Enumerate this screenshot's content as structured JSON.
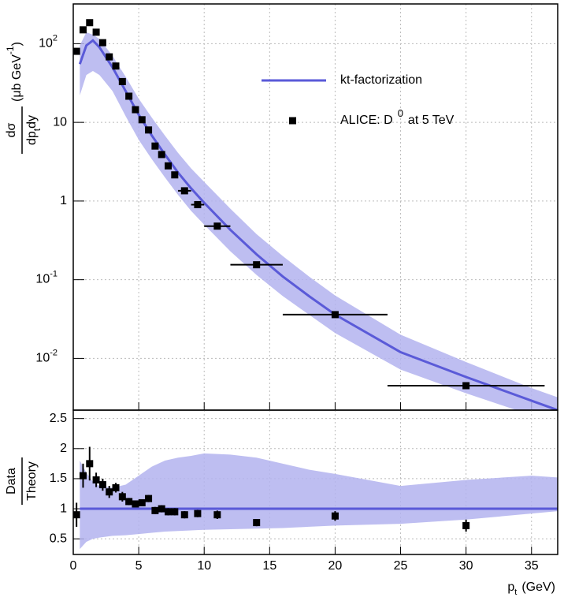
{
  "chart_data": [
    {
      "type": "line",
      "log_y": true,
      "grid": true,
      "legend": "top-right",
      "y_label": {
        "numerator": "dσ",
        "denominator": "dp",
        "denominator_sub": "t",
        "denominator_tail": "dy",
        "unit": "(μb GeV",
        "unit_sup": "-1",
        "unit_close": ")"
      },
      "xlim": [
        0,
        37
      ],
      "xticks": [
        0,
        5,
        10,
        15,
        20,
        25,
        30,
        35
      ],
      "ylim": [
        0.0022,
        320
      ],
      "yticks": [
        {
          "value": 0.01,
          "label": "10",
          "exponent": "-2"
        },
        {
          "value": 0.1,
          "label": "10",
          "exponent": "-1"
        },
        1,
        10,
        {
          "value": 100,
          "label": "10",
          "exponent": "2"
        }
      ],
      "series": [
        {
          "name": "kt-factorization",
          "style": "line",
          "color": "#5a5ad8",
          "band_color": "#b3b3ee",
          "x": [
            0.5,
            1,
            1.5,
            2,
            3,
            4,
            5,
            6,
            7,
            8,
            9,
            10,
            12,
            14,
            16,
            18,
            20,
            25,
            30,
            35,
            37
          ],
          "values": [
            55,
            95,
            110,
            90,
            50,
            25,
            12.5,
            6.8,
            3.9,
            2.3,
            1.45,
            0.95,
            0.43,
            0.21,
            0.11,
            0.062,
            0.036,
            0.012,
            0.0058,
            0.0029,
            0.0022
          ],
          "band_low": [
            22,
            40,
            45,
            40,
            25,
            12,
            6,
            3.4,
            2,
            1.2,
            0.75,
            0.5,
            0.23,
            0.115,
            0.062,
            0.036,
            0.021,
            0.0072,
            0.0036,
            0.0019,
            0.00145
          ],
          "band_high": [
            95,
            140,
            130,
            115,
            70,
            38,
            20,
            11.5,
            6.8,
            4.1,
            2.6,
            1.75,
            0.8,
            0.38,
            0.2,
            0.11,
            0.063,
            0.02,
            0.009,
            0.0042,
            0.0032
          ]
        },
        {
          "name": "ALICE: D",
          "name_sup": "0",
          "name_tail": "at 5 TeV",
          "style": "markers",
          "color": "#000000",
          "x": [
            0.25,
            0.75,
            1.25,
            1.75,
            2.25,
            2.75,
            3.25,
            3.75,
            4.25,
            4.75,
            5.25,
            5.75,
            6.25,
            6.75,
            7.25,
            7.75,
            8.5,
            9.5,
            11,
            14,
            20,
            30
          ],
          "values": [
            80,
            150,
            185,
            140,
            103,
            68,
            52,
            33,
            21.5,
            14.5,
            10.8,
            8,
            5,
            3.9,
            2.8,
            2.15,
            1.35,
            0.9,
            0.48,
            0.155,
            0.036,
            0.0045
          ],
          "xerr": [
            0.25,
            0.25,
            0.25,
            0.25,
            0.25,
            0.25,
            0.25,
            0.25,
            0.25,
            0.25,
            0.25,
            0.25,
            0.25,
            0.25,
            0.25,
            0.25,
            0.5,
            0.5,
            1,
            2,
            4,
            6
          ]
        }
      ]
    },
    {
      "type": "line",
      "log_y": false,
      "grid": true,
      "y_label": {
        "numerator": "Data",
        "denominator": "Theory"
      },
      "x_label": {
        "text": "p",
        "sub": "t",
        "tail": "(GeV)"
      },
      "xlim": [
        0,
        37
      ],
      "xticks": [
        0,
        5,
        10,
        15,
        20,
        25,
        30,
        35
      ],
      "ylim": [
        0.24,
        2.64
      ],
      "yticks": [
        0.5,
        1,
        1.5,
        2,
        2.5
      ],
      "series": [
        {
          "style": "line",
          "color": "#5a5ad8",
          "band_color": "#b3b3ee",
          "x": [
            0.5,
            1,
            1.5,
            2,
            3,
            4,
            5,
            6,
            7,
            8,
            9,
            10,
            12,
            14,
            16,
            18,
            20,
            25,
            30,
            35,
            37
          ],
          "values": [
            1,
            1,
            1,
            1,
            1,
            1,
            1,
            1,
            1,
            1,
            1,
            1,
            1,
            1,
            1,
            1,
            1,
            1,
            1,
            1,
            1
          ],
          "band_low": [
            0.33,
            0.45,
            0.5,
            0.52,
            0.55,
            0.56,
            0.58,
            0.6,
            0.62,
            0.63,
            0.64,
            0.65,
            0.66,
            0.67,
            0.68,
            0.7,
            0.72,
            0.75,
            0.82,
            0.92,
            0.96
          ],
          "band_high": [
            1.8,
            1.6,
            1.45,
            1.38,
            1.35,
            1.4,
            1.55,
            1.7,
            1.8,
            1.85,
            1.88,
            1.92,
            1.9,
            1.85,
            1.75,
            1.65,
            1.58,
            1.38,
            1.48,
            1.55,
            1.52
          ]
        },
        {
          "style": "markers",
          "color": "#000000",
          "x": [
            0.25,
            0.75,
            1.25,
            1.75,
            2.25,
            2.75,
            3.25,
            3.75,
            4.25,
            4.75,
            5.25,
            5.75,
            6.25,
            6.75,
            7.25,
            7.75,
            8.5,
            9.5,
            11,
            14,
            20,
            30
          ],
          "values": [
            0.9,
            1.55,
            1.75,
            1.48,
            1.4,
            1.28,
            1.35,
            1.2,
            1.12,
            1.08,
            1.1,
            1.17,
            0.97,
            1.0,
            0.95,
            0.95,
            0.9,
            0.92,
            0.9,
            0.77,
            0.88,
            0.72
          ],
          "yerr": [
            0.2,
            0.2,
            0.28,
            0.12,
            0.1,
            0.1,
            0.08,
            0.08,
            0.06,
            0.05,
            0.05,
            0.06,
            0.06,
            0.06,
            0.06,
            0.06,
            0.06,
            0.06,
            0.07,
            0.06,
            0.08,
            0.1
          ]
        }
      ]
    }
  ]
}
